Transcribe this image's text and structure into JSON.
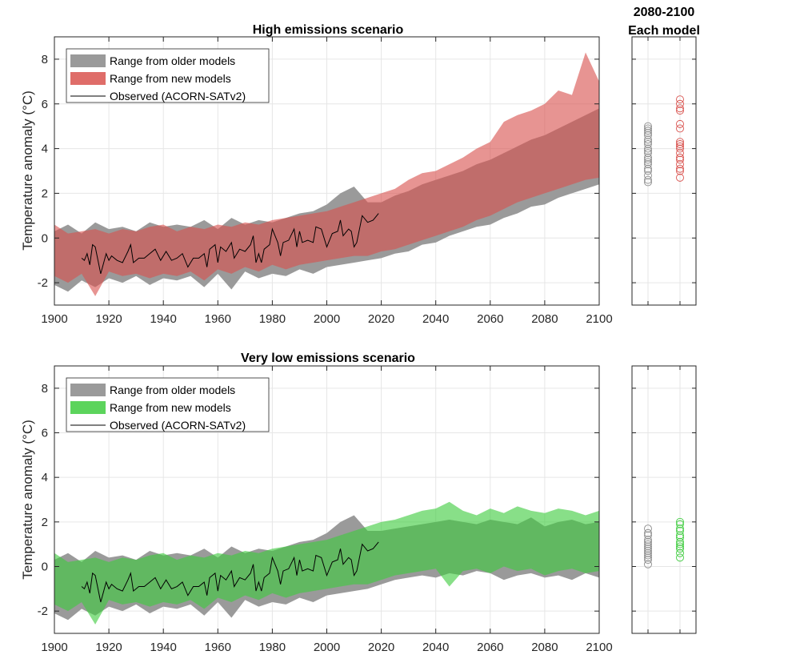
{
  "colors": {
    "older": "#9a9a9a",
    "high_new": "#d9534f",
    "low_new": "#3fcc3f",
    "observed": "#000000",
    "grid": "#e6e6e6"
  },
  "side_title": [
    "2080-2100",
    "Each model"
  ],
  "chart_data": [
    {
      "type": "area",
      "title": "High emissions scenario",
      "ylabel": "Temperature anomaly (°C)",
      "xlim": [
        1900,
        2100
      ],
      "ylim": [
        -3,
        9
      ],
      "xticks": [
        1900,
        1920,
        1940,
        1960,
        1980,
        2000,
        2020,
        2040,
        2060,
        2080,
        2100
      ],
      "yticks": [
        -2,
        0,
        2,
        4,
        6,
        8
      ],
      "grid": true,
      "legend_placement": "top-left",
      "legend": [
        "Range from older models",
        "Range from new models",
        "Observed (ACORN-SATv2)"
      ],
      "band_years": [
        1900,
        1905,
        1910,
        1915,
        1920,
        1925,
        1930,
        1935,
        1940,
        1945,
        1950,
        1955,
        1960,
        1965,
        1970,
        1975,
        1980,
        1985,
        1990,
        1995,
        2000,
        2005,
        2010,
        2015,
        2020,
        2025,
        2030,
        2035,
        2040,
        2045,
        2050,
        2055,
        2060,
        2065,
        2070,
        2075,
        2080,
        2085,
        2090,
        2095,
        2100
      ],
      "older_low": [
        -2.1,
        -2.4,
        -1.9,
        -2.2,
        -1.8,
        -2.0,
        -1.7,
        -2.1,
        -1.8,
        -1.9,
        -1.7,
        -2.2,
        -1.6,
        -2.3,
        -1.5,
        -1.8,
        -1.6,
        -1.7,
        -1.4,
        -1.6,
        -1.3,
        -1.2,
        -1.1,
        -1.0,
        -0.9,
        -0.7,
        -0.6,
        -0.3,
        -0.2,
        0.1,
        0.3,
        0.5,
        0.6,
        0.9,
        1.1,
        1.4,
        1.5,
        1.8,
        2.0,
        2.2,
        2.4
      ],
      "older_high": [
        0.3,
        0.6,
        0.2,
        0.7,
        0.4,
        0.5,
        0.3,
        0.7,
        0.5,
        0.6,
        0.5,
        0.8,
        0.4,
        0.9,
        0.6,
        0.8,
        0.7,
        0.9,
        1.1,
        1.2,
        1.5,
        2.0,
        2.3,
        1.6,
        1.6,
        1.9,
        2.1,
        2.4,
        2.6,
        2.8,
        3.0,
        3.3,
        3.5,
        3.8,
        4.1,
        4.4,
        4.6,
        4.9,
        5.2,
        5.5,
        5.8
      ],
      "new_low": [
        -1.7,
        -2.0,
        -1.6,
        -2.6,
        -1.5,
        -1.7,
        -1.6,
        -1.8,
        -1.6,
        -1.7,
        -1.5,
        -1.9,
        -1.4,
        -1.6,
        -1.3,
        -1.5,
        -1.2,
        -1.4,
        -1.2,
        -1.1,
        -1.0,
        -0.9,
        -0.8,
        -0.8,
        -0.6,
        -0.5,
        -0.3,
        -0.1,
        0.1,
        0.3,
        0.5,
        0.8,
        1.0,
        1.3,
        1.6,
        1.8,
        2.0,
        2.2,
        2.4,
        2.6,
        2.7
      ],
      "new_high": [
        0.6,
        0.2,
        0.3,
        0.4,
        0.2,
        0.4,
        0.3,
        0.5,
        0.6,
        0.3,
        0.5,
        0.4,
        0.6,
        0.5,
        0.7,
        0.6,
        0.8,
        0.9,
        1.0,
        1.1,
        1.2,
        1.4,
        1.6,
        1.8,
        2.0,
        2.2,
        2.6,
        2.9,
        3.0,
        3.3,
        3.6,
        4.0,
        4.3,
        5.2,
        5.5,
        5.7,
        6.0,
        6.6,
        6.4,
        8.3,
        7.0
      ],
      "model_points_older": [
        2.5,
        2.6,
        2.8,
        3.0,
        3.1,
        3.3,
        3.4,
        3.5,
        3.6,
        3.8,
        3.9,
        4.0,
        4.2,
        4.3,
        4.4,
        4.6,
        4.7,
        4.8,
        4.9,
        5.0
      ],
      "model_points_new": [
        2.7,
        3.0,
        3.1,
        3.3,
        3.5,
        3.6,
        3.8,
        4.0,
        4.1,
        4.2,
        4.3,
        4.9,
        5.1,
        5.7,
        5.8,
        6.0,
        6.2
      ]
    },
    {
      "type": "area",
      "title": "Very low emissions scenario",
      "ylabel": "Temperature anomaly (°C)",
      "xlim": [
        1900,
        2100
      ],
      "ylim": [
        -3,
        9
      ],
      "xticks": [
        1900,
        1920,
        1940,
        1960,
        1980,
        2000,
        2020,
        2040,
        2060,
        2080,
        2100
      ],
      "yticks": [
        -2,
        0,
        2,
        4,
        6,
        8
      ],
      "grid": true,
      "legend_placement": "top-left",
      "legend": [
        "Range from older models",
        "Range from new models",
        "Observed (ACORN-SATv2)"
      ],
      "band_years": [
        1900,
        1905,
        1910,
        1915,
        1920,
        1925,
        1930,
        1935,
        1940,
        1945,
        1950,
        1955,
        1960,
        1965,
        1970,
        1975,
        1980,
        1985,
        1990,
        1995,
        2000,
        2005,
        2010,
        2015,
        2020,
        2025,
        2030,
        2035,
        2040,
        2045,
        2050,
        2055,
        2060,
        2065,
        2070,
        2075,
        2080,
        2085,
        2090,
        2095,
        2100
      ],
      "older_low": [
        -2.1,
        -2.4,
        -1.9,
        -2.2,
        -1.8,
        -2.0,
        -1.7,
        -2.1,
        -1.8,
        -1.9,
        -1.7,
        -2.2,
        -1.6,
        -2.3,
        -1.5,
        -1.8,
        -1.6,
        -1.7,
        -1.4,
        -1.6,
        -1.3,
        -1.2,
        -1.1,
        -1.0,
        -0.8,
        -0.6,
        -0.5,
        -0.4,
        -0.5,
        -0.3,
        -0.4,
        -0.2,
        -0.3,
        -0.6,
        -0.4,
        -0.3,
        -0.5,
        -0.4,
        -0.6,
        -0.3,
        -0.5
      ],
      "older_high": [
        0.3,
        0.6,
        0.2,
        0.7,
        0.4,
        0.5,
        0.3,
        0.7,
        0.5,
        0.6,
        0.5,
        0.8,
        0.4,
        0.9,
        0.6,
        0.8,
        0.7,
        0.9,
        1.1,
        1.2,
        1.5,
        2.0,
        2.3,
        1.6,
        1.6,
        1.7,
        1.8,
        1.9,
        2.0,
        2.1,
        2.0,
        1.9,
        2.1,
        2.0,
        1.9,
        2.2,
        1.8,
        2.0,
        2.1,
        1.9,
        2.0
      ],
      "new_low": [
        -1.7,
        -2.0,
        -1.6,
        -2.6,
        -1.5,
        -1.7,
        -1.6,
        -1.8,
        -1.6,
        -1.7,
        -1.5,
        -1.9,
        -1.4,
        -1.6,
        -1.3,
        -1.5,
        -1.2,
        -1.4,
        -1.2,
        -1.1,
        -1.0,
        -0.9,
        -0.8,
        -0.8,
        -0.6,
        -0.4,
        -0.3,
        -0.2,
        -0.1,
        -0.9,
        -0.2,
        -0.1,
        -0.3,
        0.0,
        -0.2,
        -0.1,
        -0.4,
        -0.2,
        -0.1,
        -0.3,
        -0.2
      ],
      "new_high": [
        0.6,
        0.2,
        0.3,
        0.4,
        0.2,
        0.4,
        0.3,
        0.5,
        0.6,
        0.3,
        0.5,
        0.4,
        0.6,
        0.5,
        0.7,
        0.6,
        0.8,
        0.9,
        1.0,
        1.1,
        1.2,
        1.4,
        1.6,
        1.8,
        2.0,
        2.1,
        2.3,
        2.5,
        2.6,
        2.9,
        2.5,
        2.3,
        2.6,
        2.4,
        2.7,
        2.5,
        2.4,
        2.6,
        2.5,
        2.3,
        2.5
      ],
      "model_points_older": [
        0.1,
        0.3,
        0.4,
        0.5,
        0.6,
        0.7,
        0.8,
        0.9,
        1.0,
        1.1,
        1.2,
        1.4,
        1.5,
        1.7
      ],
      "model_points_new": [
        0.4,
        0.6,
        0.8,
        0.9,
        1.0,
        1.1,
        1.3,
        1.4,
        1.6,
        1.7,
        1.9,
        2.0
      ]
    }
  ],
  "observed": {
    "x": [
      1910,
      1911,
      1912,
      1913,
      1914,
      1915,
      1917,
      1919,
      1920,
      1921,
      1923,
      1925,
      1927,
      1928,
      1929,
      1931,
      1933,
      1935,
      1937,
      1939,
      1941,
      1943,
      1945,
      1947,
      1949,
      1951,
      1953,
      1955,
      1956,
      1957,
      1959,
      1960,
      1961,
      1963,
      1965,
      1966,
      1968,
      1970,
      1972,
      1973,
      1974,
      1975,
      1976,
      1977,
      1979,
      1980,
      1982,
      1983,
      1984,
      1986,
      1988,
      1989,
      1990,
      1991,
      1993,
      1995,
      1996,
      1998,
      2000,
      2002,
      2004,
      2005,
      2006,
      2008,
      2009,
      2010,
      2011,
      2013,
      2015,
      2017,
      2019
    ],
    "y": [
      -0.9,
      -1.0,
      -0.7,
      -1.2,
      -0.3,
      -0.4,
      -1.6,
      -0.7,
      -1.0,
      -0.8,
      -1.0,
      -1.1,
      -0.6,
      -0.3,
      -1.1,
      -0.9,
      -0.9,
      -0.7,
      -0.5,
      -1.0,
      -0.6,
      -1.0,
      -0.9,
      -0.7,
      -1.3,
      -0.9,
      -0.9,
      -0.7,
      -1.3,
      -0.5,
      -0.3,
      -1.1,
      -0.4,
      -0.6,
      -0.2,
      -0.9,
      -0.5,
      -0.6,
      -0.3,
      0.1,
      -1.1,
      -0.7,
      -1.1,
      -0.5,
      -0.3,
      0.4,
      -0.2,
      -0.8,
      -0.2,
      -0.1,
      0.4,
      -0.4,
      0.3,
      -0.2,
      -0.1,
      -0.2,
      0.5,
      0.4,
      -0.4,
      0.2,
      0.3,
      0.8,
      0.1,
      0.4,
      0.3,
      -0.4,
      -0.2,
      1.0,
      0.7,
      0.8,
      1.1
    ]
  }
}
